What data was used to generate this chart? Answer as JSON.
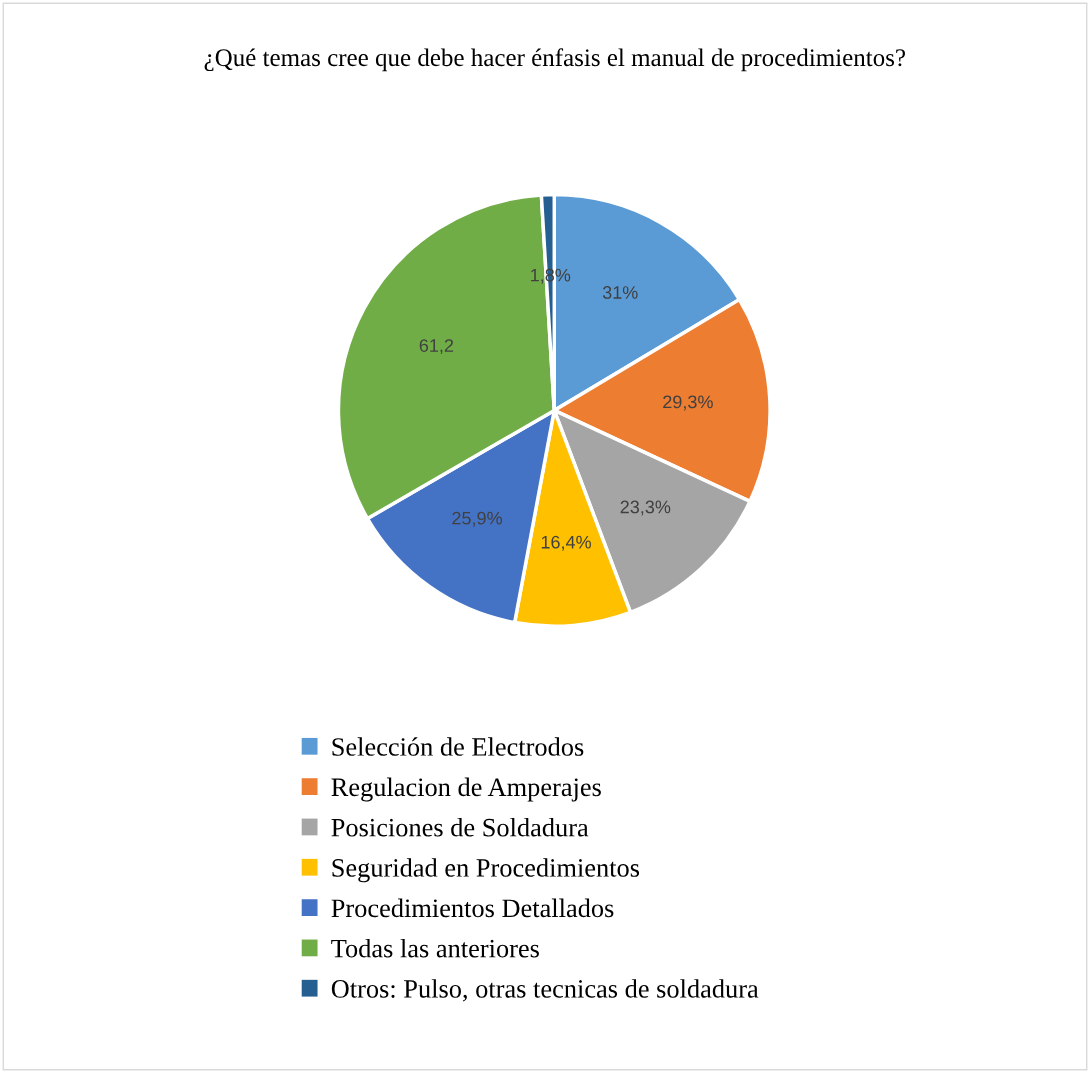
{
  "chart_data": {
    "type": "pie",
    "title": "¿Qué temas cree que debe hacer énfasis el manual de procedimientos?",
    "categories": [
      "Selección de Electrodos",
      "Regulacion de Amperajes",
      "Posiciones de Soldadura",
      "Seguridad en Procedimientos",
      "Procedimientos Detallados",
      "Todas las anteriores",
      "Otros: Pulso, otras tecnicas de soldadura"
    ],
    "values": [
      31,
      29.3,
      23.3,
      16.4,
      25.9,
      61.2,
      1.8
    ],
    "value_labels": [
      "31%",
      "29,3%",
      "23,3%",
      "16,4%",
      "25,9%",
      "61,2",
      "1,8%"
    ],
    "colors": [
      "#5b9bd5",
      "#ed7d31",
      "#a5a5a5",
      "#ffc000",
      "#4472c4",
      "#70ad47",
      "#255e91"
    ],
    "legend": "bottom"
  }
}
